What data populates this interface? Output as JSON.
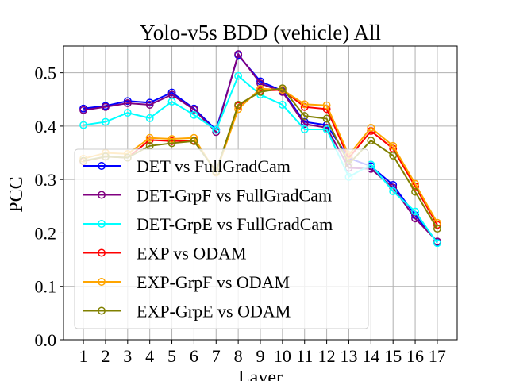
{
  "chart_data": {
    "type": "line",
    "title": "Yolo-v5s BDD (vehicle) All",
    "xlabel": "Layer",
    "ylabel": "PCC",
    "x": [
      1,
      2,
      3,
      4,
      5,
      6,
      7,
      8,
      9,
      10,
      11,
      12,
      13,
      14,
      15,
      16,
      17
    ],
    "xlim": [
      0.1,
      17.9
    ],
    "ylim": [
      0.0,
      0.55
    ],
    "yticks": [
      "0.0",
      "0.1",
      "0.2",
      "0.3",
      "0.4",
      "0.5"
    ],
    "xticks": [
      "1",
      "2",
      "3",
      "4",
      "5",
      "6",
      "7",
      "8",
      "9",
      "10",
      "11",
      "12",
      "13",
      "14",
      "15",
      "16",
      "17"
    ],
    "grid": true,
    "legend_position": "lower-left",
    "series": [
      {
        "name": "DET vs FullGradCam",
        "color": "#0000ff",
        "values": [
          0.433,
          0.438,
          0.447,
          0.444,
          0.463,
          0.433,
          0.393,
          0.533,
          0.484,
          0.466,
          0.408,
          0.402,
          0.34,
          0.325,
          0.29,
          0.233,
          0.183
        ]
      },
      {
        "name": "DET-GrpF vs FullGradCam",
        "color": "#800080",
        "values": [
          0.43,
          0.436,
          0.443,
          0.44,
          0.459,
          0.431,
          0.389,
          0.535,
          0.48,
          0.464,
          0.404,
          0.397,
          0.322,
          0.32,
          0.285,
          0.227,
          0.184
        ]
      },
      {
        "name": "DET-GrpE vs FullGradCam",
        "color": "#00ffff",
        "values": [
          0.402,
          0.408,
          0.425,
          0.415,
          0.446,
          0.421,
          0.393,
          0.494,
          0.459,
          0.44,
          0.394,
          0.394,
          0.305,
          0.328,
          0.278,
          0.24,
          0.181
        ]
      },
      {
        "name": "EXP vs ODAM",
        "color": "#ff0000",
        "values": [
          0.334,
          0.343,
          0.341,
          0.374,
          0.372,
          0.373,
          0.315,
          0.438,
          0.466,
          0.468,
          0.436,
          0.432,
          0.34,
          0.391,
          0.358,
          0.287,
          0.215
        ]
      },
      {
        "name": "EXP-GrpF vs ODAM",
        "color": "#ffa500",
        "values": [
          0.339,
          0.35,
          0.348,
          0.378,
          0.376,
          0.378,
          0.313,
          0.432,
          0.47,
          0.468,
          0.441,
          0.439,
          0.346,
          0.397,
          0.363,
          0.292,
          0.219
        ]
      },
      {
        "name": "EXP-GrpE vs ODAM",
        "color": "#808000",
        "values": [
          0.335,
          0.343,
          0.341,
          0.363,
          0.368,
          0.372,
          0.315,
          0.44,
          0.464,
          0.471,
          0.419,
          0.414,
          0.329,
          0.373,
          0.345,
          0.277,
          0.208
        ]
      }
    ]
  }
}
